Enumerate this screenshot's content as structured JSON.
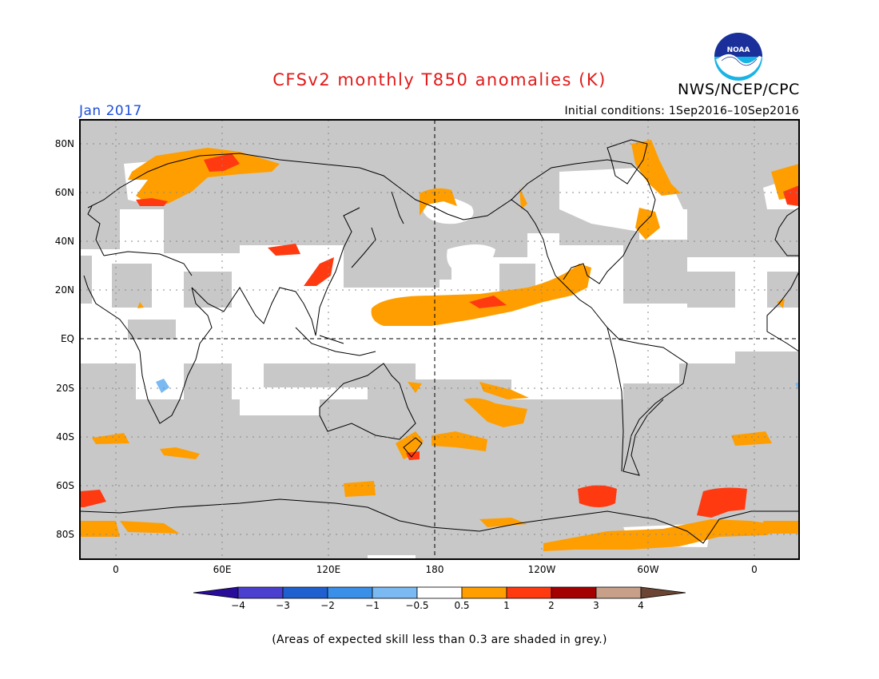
{
  "title": "CFSv2 monthly T850 anomalies (K)",
  "agency": "NWS/NCEP/CPC",
  "logo_text": "NOAA",
  "month": "Jan 2017",
  "initial_conditions": "Initial conditions: 1Sep2016–10Sep2016",
  "footnote": "(Areas of expected skill less than 0.3 are shaded in grey.)",
  "map": {
    "lat_labels": [
      "80N",
      "60N",
      "40N",
      "20N",
      "EQ",
      "20S",
      "40S",
      "60S",
      "80S"
    ],
    "lon_labels": [
      "0",
      "60E",
      "120E",
      "180",
      "120W",
      "60W",
      "0"
    ],
    "grey_color": "#c8c8c8",
    "unskilled_note_color": "grey"
  },
  "legend": {
    "labels": [
      "−4",
      "−3",
      "−2",
      "−1",
      "−0.5",
      "0.5",
      "1",
      "2",
      "3",
      "4"
    ],
    "colors": [
      "#2a0c9b",
      "#4b3fd0",
      "#1f5fd0",
      "#3a8fe8",
      "#7ab9f2",
      "#ffffff",
      "#ff9e00",
      "#ff3a10",
      "#a50000",
      "#c8a08a",
      "#6b4433"
    ]
  }
}
